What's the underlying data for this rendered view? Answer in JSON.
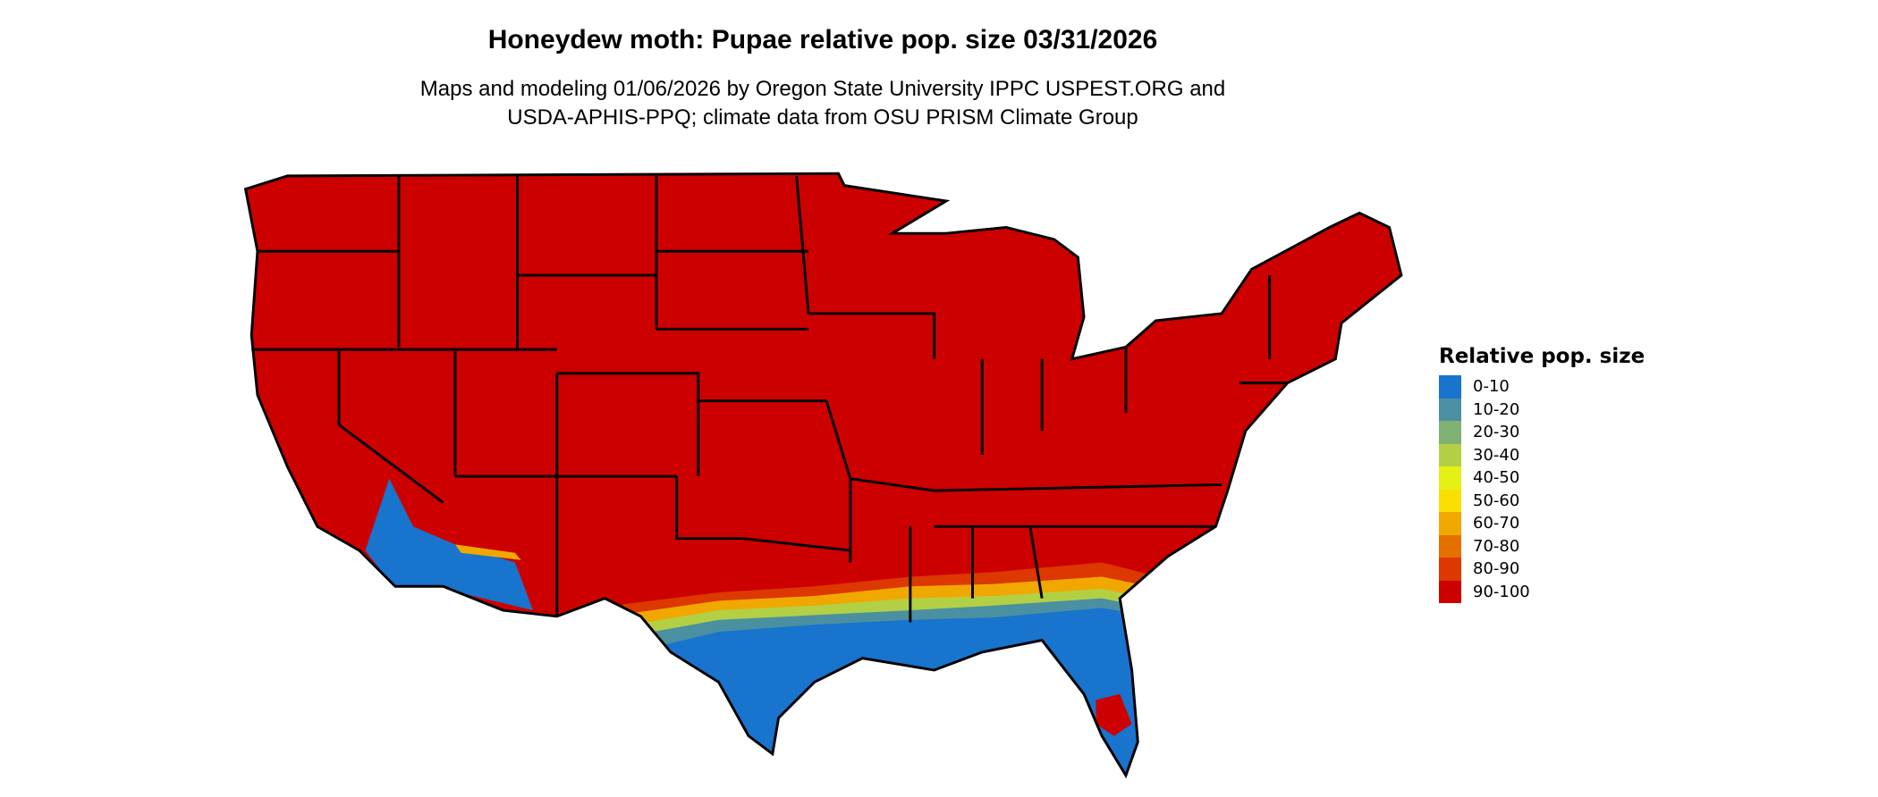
{
  "title": "Honeydew moth: Pupae relative pop. size 03/31/2026",
  "subtitle_line1": "Maps and modeling 01/06/2026 by Oregon State University IPPC USPEST.ORG and",
  "subtitle_line2": "USDA-APHIS-PPQ; climate data from OSU PRISM Climate Group",
  "legend": {
    "title": "Relative pop. size",
    "items": [
      {
        "label": "0-10",
        "color": "#1874CD"
      },
      {
        "label": "10-20",
        "color": "#4A90A0"
      },
      {
        "label": "20-30",
        "color": "#7FB074"
      },
      {
        "label": "30-40",
        "color": "#B3D045"
      },
      {
        "label": "40-50",
        "color": "#E5F014"
      },
      {
        "label": "50-60",
        "color": "#F9E000"
      },
      {
        "label": "60-70",
        "color": "#F0A800"
      },
      {
        "label": "70-80",
        "color": "#E57000"
      },
      {
        "label": "80-90",
        "color": "#DC3800"
      },
      {
        "label": "90-100",
        "color": "#CD0000"
      }
    ]
  },
  "map": {
    "region": "Contiguous United States",
    "dominant_class": "90-100",
    "southern_class": "0-10"
  }
}
